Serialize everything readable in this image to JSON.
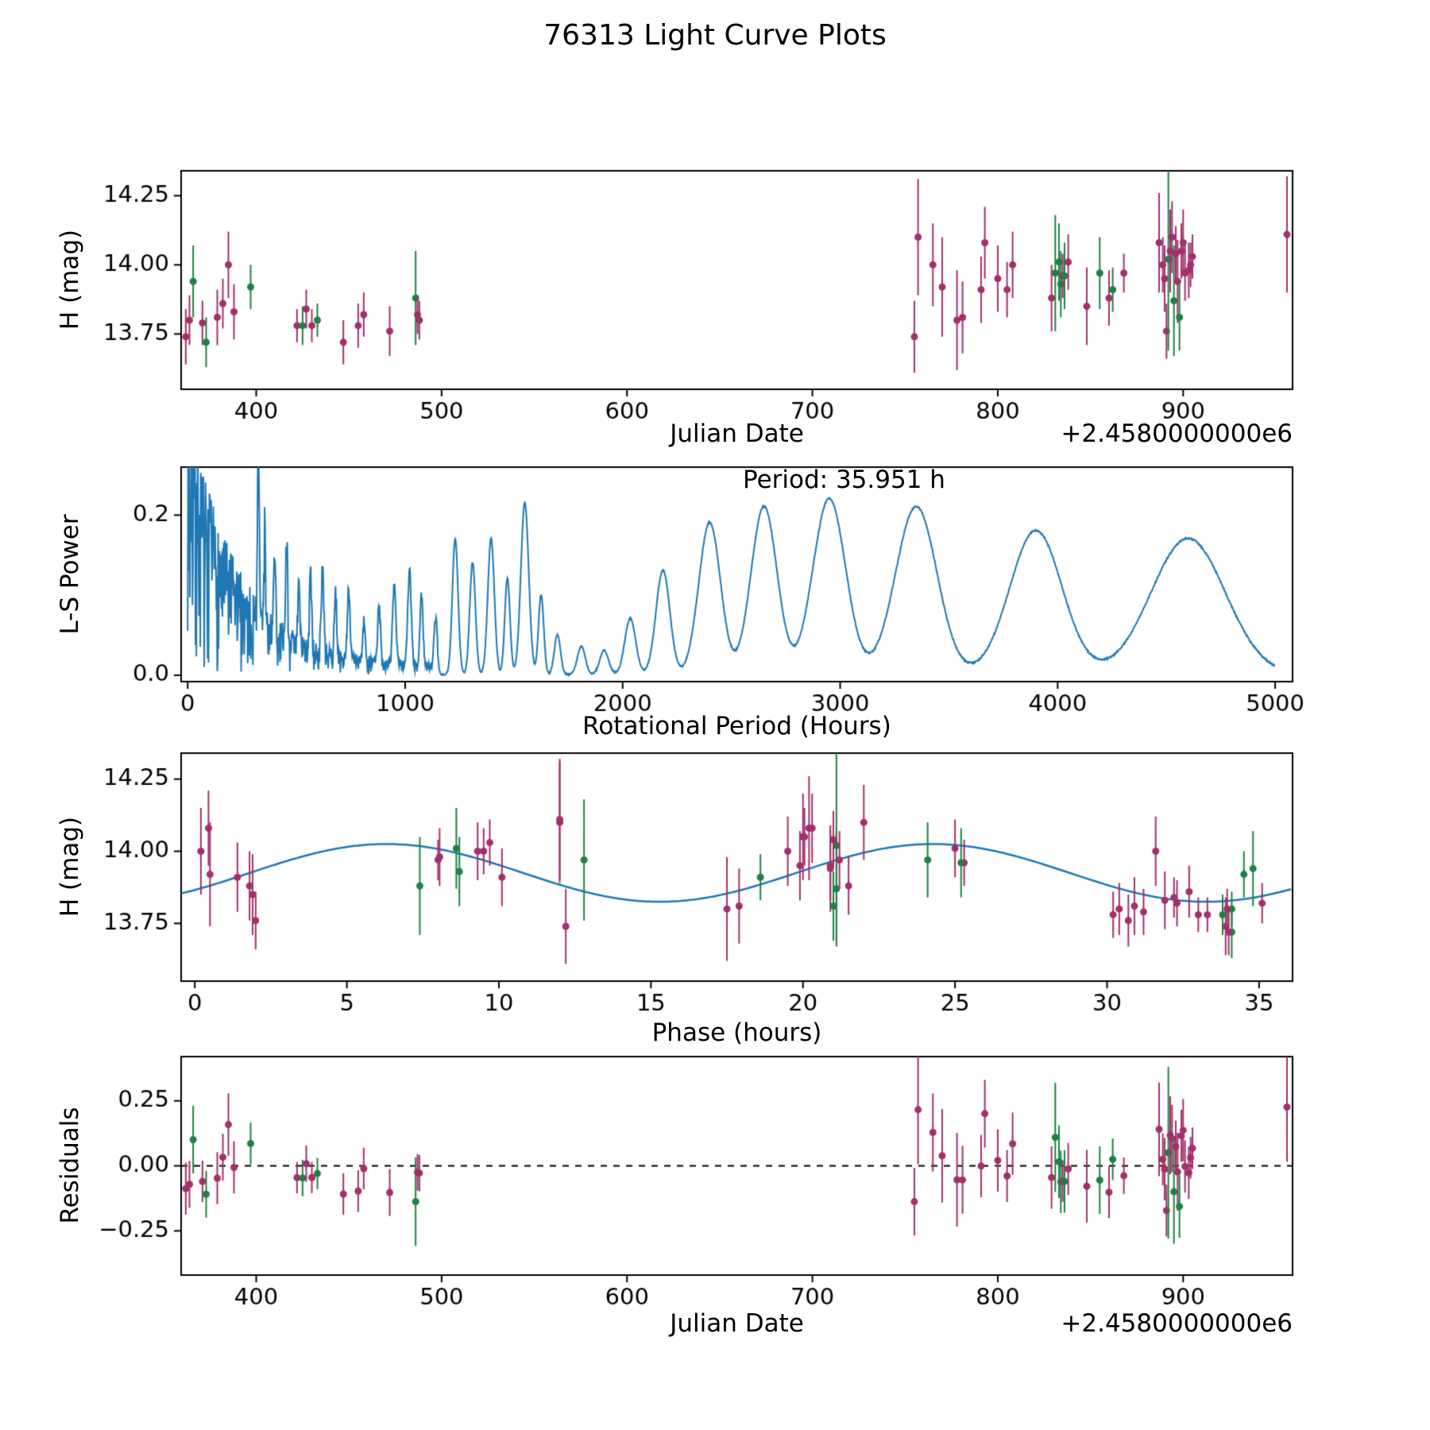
{
  "title": "76313 Light Curve Plots",
  "colors": {
    "purple_series": "#a2306c",
    "green_series": "#1f8142",
    "fit_line": "#1f77b4",
    "axis": "#000000",
    "background": "#ffffff"
  },
  "chart_data": [
    {
      "type": "scatter",
      "name": "light-curve",
      "xlabel": "Julian Date",
      "ylabel": "H (mag)",
      "x_offset_label": "+2.4580000000e6",
      "xlim": [
        359.5,
        959.0
      ],
      "ylim": [
        13.55,
        14.34
      ],
      "xticks": [
        [
          400,
          "400"
        ],
        [
          500,
          "500"
        ],
        [
          600,
          "600"
        ],
        [
          700,
          "700"
        ],
        [
          800,
          "800"
        ],
        [
          900,
          "900"
        ]
      ],
      "yticks": [
        [
          13.75,
          "13.75"
        ],
        [
          14.0,
          "14.00"
        ],
        [
          14.25,
          "14.25"
        ]
      ],
      "grid": false
    },
    {
      "type": "line",
      "name": "periodogram",
      "annotation": "Period: 35.951 h",
      "xlabel": "Rotational Period (Hours)",
      "ylabel": "L-S Power",
      "xlim": [
        -30,
        5080
      ],
      "ylim": [
        -0.008,
        0.26
      ],
      "xticks": [
        [
          0,
          "0"
        ],
        [
          1000,
          "1000"
        ],
        [
          2000,
          "2000"
        ],
        [
          3000,
          "3000"
        ],
        [
          4000,
          "4000"
        ],
        [
          5000,
          "5000"
        ]
      ],
      "yticks": [
        [
          0.0,
          "0.0"
        ],
        [
          0.2,
          "0.2"
        ]
      ],
      "noise": {
        "seed": 7,
        "amp": 0.325,
        "decay": 240,
        "floor": 0.012,
        "pow": 0.65,
        "cutoff": 1150,
        "step": 2
      },
      "peaks": [
        [
          325,
          0.2,
          5
        ],
        [
          355,
          0.13,
          4
        ],
        [
          400,
          0.09,
          5
        ],
        [
          455,
          0.13,
          5
        ],
        [
          510,
          0.08,
          5
        ],
        [
          565,
          0.1,
          5
        ],
        [
          620,
          0.11,
          6
        ],
        [
          680,
          0.08,
          6
        ],
        [
          740,
          0.1,
          6
        ],
        [
          810,
          0.05,
          6
        ],
        [
          880,
          0.07,
          7
        ],
        [
          950,
          0.1,
          8
        ],
        [
          1020,
          0.12,
          8
        ],
        [
          1075,
          0.09,
          7
        ],
        [
          1140,
          0.06,
          8
        ],
        [
          1230,
          0.17,
          13
        ],
        [
          1310,
          0.14,
          13
        ],
        [
          1395,
          0.17,
          15
        ],
        [
          1470,
          0.12,
          12
        ],
        [
          1550,
          0.215,
          18
        ],
        [
          1625,
          0.1,
          12
        ],
        [
          1700,
          0.05,
          14
        ],
        [
          1810,
          0.035,
          18
        ],
        [
          1915,
          0.03,
          20
        ],
        [
          2035,
          0.07,
          25
        ],
        [
          2185,
          0.13,
          32
        ],
        [
          2400,
          0.19,
          50
        ],
        [
          2650,
          0.21,
          60
        ],
        [
          2950,
          0.22,
          75
        ],
        [
          3350,
          0.21,
          95
        ],
        [
          3900,
          0.18,
          120
        ],
        [
          4600,
          0.17,
          170
        ]
      ],
      "grid": false
    },
    {
      "type": "scatter",
      "name": "phase-folded-light-curve",
      "xlabel": "Phase (hours)",
      "ylabel": "H (mag)",
      "xlim": [
        -0.45,
        36.1
      ],
      "ylim": [
        13.55,
        14.34
      ],
      "xticks": [
        [
          0,
          "0"
        ],
        [
          5,
          "5"
        ],
        [
          10,
          "10"
        ],
        [
          15,
          "15"
        ],
        [
          20,
          "20"
        ],
        [
          25,
          "25"
        ],
        [
          30,
          "30"
        ],
        [
          35,
          "35"
        ]
      ],
      "yticks": [
        [
          13.75,
          "13.75"
        ],
        [
          14.0,
          "14.00"
        ],
        [
          14.25,
          "14.25"
        ]
      ],
      "fit": {
        "mean": 13.925,
        "amplitude": 0.1,
        "period_hours": 17.975,
        "phase_of_max": 6.3
      },
      "grid": false
    },
    {
      "type": "scatter",
      "name": "residuals",
      "xlabel": "Julian Date",
      "ylabel": "Residuals",
      "x_offset_label": "+2.4580000000e6",
      "xlim": [
        359.5,
        959.0
      ],
      "ylim": [
        -0.42,
        0.42
      ],
      "xticks": [
        [
          400,
          "400"
        ],
        [
          500,
          "500"
        ],
        [
          600,
          "600"
        ],
        [
          700,
          "700"
        ],
        [
          800,
          "800"
        ],
        [
          900,
          "900"
        ]
      ],
      "yticks": [
        [
          -0.25,
          "−0.25"
        ],
        [
          0.0,
          "0.00"
        ],
        [
          0.25,
          "0.25"
        ]
      ],
      "zero_line": true,
      "grid": false
    }
  ],
  "observations": {
    "columns": [
      "jd_minus_offset",
      "phase_hours",
      "H_mag",
      "H_err",
      "filter"
    ],
    "rows": [
      [
        362,
        33.9,
        13.74,
        0.1,
        "p"
      ],
      [
        364,
        30.4,
        13.8,
        0.09,
        "p"
      ],
      [
        366,
        34.8,
        13.94,
        0.13,
        "g"
      ],
      [
        371,
        31.2,
        13.79,
        0.08,
        "p"
      ],
      [
        373,
        34.1,
        13.72,
        0.09,
        "g"
      ],
      [
        379,
        30.9,
        13.81,
        0.1,
        "p"
      ],
      [
        382,
        32.7,
        13.86,
        0.09,
        "p"
      ],
      [
        385,
        31.6,
        14.0,
        0.12,
        "p"
      ],
      [
        388,
        31.9,
        13.83,
        0.1,
        "p"
      ],
      [
        397,
        34.5,
        13.92,
        0.08,
        "g"
      ],
      [
        422,
        33.0,
        13.78,
        0.06,
        "p"
      ],
      [
        425,
        33.8,
        13.78,
        0.07,
        "g"
      ],
      [
        427,
        32.2,
        13.84,
        0.07,
        "p"
      ],
      [
        430,
        33.3,
        13.78,
        0.06,
        "p"
      ],
      [
        433,
        34.1,
        13.8,
        0.06,
        "g"
      ],
      [
        447,
        34.0,
        13.72,
        0.08,
        "p"
      ],
      [
        455,
        30.2,
        13.78,
        0.08,
        "p"
      ],
      [
        458,
        32.3,
        13.82,
        0.08,
        "p"
      ],
      [
        472,
        30.7,
        13.76,
        0.09,
        "p"
      ],
      [
        486,
        7.4,
        13.88,
        0.17,
        "g"
      ],
      [
        487,
        35.1,
        13.82,
        0.07,
        "p"
      ],
      [
        488,
        33.95,
        13.8,
        0.07,
        "p"
      ],
      [
        755,
        12.2,
        13.74,
        0.13,
        "p"
      ],
      [
        757,
        12.0,
        14.1,
        0.21,
        "p"
      ],
      [
        765,
        0.2,
        14.0,
        0.15,
        "p"
      ],
      [
        770,
        0.5,
        13.92,
        0.18,
        "p"
      ],
      [
        778,
        17.5,
        13.8,
        0.18,
        "p"
      ],
      [
        781,
        17.9,
        13.81,
        0.13,
        "p"
      ],
      [
        791,
        1.4,
        13.91,
        0.12,
        "p"
      ],
      [
        793,
        0.45,
        14.08,
        0.13,
        "p"
      ],
      [
        800,
        19.9,
        13.95,
        0.12,
        "p"
      ],
      [
        805,
        10.1,
        13.91,
        0.1,
        "p"
      ],
      [
        808,
        19.5,
        14.0,
        0.12,
        "p"
      ],
      [
        829,
        1.8,
        13.88,
        0.12,
        "p"
      ],
      [
        831,
        12.8,
        13.97,
        0.21,
        "g"
      ],
      [
        833,
        8.6,
        14.01,
        0.14,
        "g"
      ],
      [
        834,
        8.7,
        13.93,
        0.12,
        "g"
      ],
      [
        835,
        25.3,
        13.96,
        0.08,
        "p"
      ],
      [
        836,
        25.2,
        13.96,
        0.12,
        "g"
      ],
      [
        838,
        25.0,
        14.01,
        0.1,
        "p"
      ],
      [
        848,
        1.9,
        13.85,
        0.14,
        "p"
      ],
      [
        855,
        24.1,
        13.97,
        0.13,
        "g"
      ],
      [
        860,
        21.5,
        13.88,
        0.1,
        "p"
      ],
      [
        862,
        18.6,
        13.91,
        0.08,
        "g"
      ],
      [
        868,
        8.0,
        13.97,
        0.07,
        "p"
      ],
      [
        887,
        20.2,
        14.08,
        0.18,
        "p"
      ],
      [
        889,
        9.3,
        14.0,
        0.1,
        "p"
      ],
      [
        890,
        20.9,
        13.95,
        0.12,
        "p"
      ],
      [
        891,
        2.0,
        13.76,
        0.1,
        "p"
      ],
      [
        892,
        21.1,
        14.02,
        0.33,
        "g"
      ],
      [
        893,
        20.0,
        14.05,
        0.15,
        "p"
      ],
      [
        894,
        22.0,
        14.1,
        0.13,
        "p"
      ],
      [
        895,
        21.1,
        13.87,
        0.2,
        "g"
      ],
      [
        896,
        21.0,
        14.04,
        0.1,
        "p"
      ],
      [
        897,
        20.9,
        13.94,
        0.15,
        "p"
      ],
      [
        898,
        21.0,
        13.81,
        0.12,
        "g"
      ],
      [
        899,
        20.05,
        14.05,
        0.1,
        "p"
      ],
      [
        900,
        20.3,
        14.08,
        0.12,
        "p"
      ],
      [
        901,
        21.2,
        13.97,
        0.1,
        "p"
      ],
      [
        903,
        8.05,
        13.98,
        0.1,
        "p"
      ],
      [
        904,
        9.5,
        14.0,
        0.08,
        "p"
      ],
      [
        905,
        9.7,
        14.03,
        0.08,
        "p"
      ],
      [
        956,
        12.0,
        14.11,
        0.21,
        "p"
      ]
    ]
  }
}
